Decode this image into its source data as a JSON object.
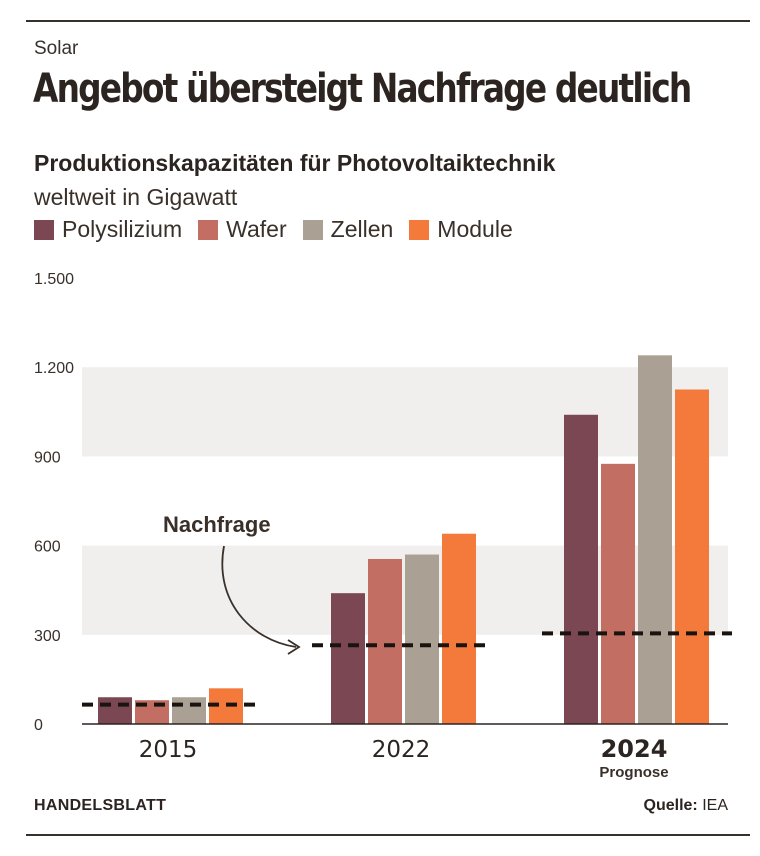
{
  "kicker": "Solar",
  "headline": "Angebot übersteigt Nachfrage deutlich",
  "footer": {
    "brand": "HANDELSBLATT",
    "source_label": "Quelle:",
    "source_value": "IEA"
  },
  "colors": {
    "Polysilizium": "#7b4753",
    "Wafer": "#c36e63",
    "Zellen": "#aaa093",
    "Module": "#f47a3c",
    "band": "#f1efed",
    "demand": "#1a1410"
  },
  "chart_data": {
    "type": "bar",
    "title": "Produktionskapazitäten für Photovoltaiktechnik",
    "unit": "weltweit in Gigawatt",
    "categories": [
      "2015",
      "2022",
      "2024"
    ],
    "category_notes": [
      "",
      "",
      "Prognose"
    ],
    "series": [
      {
        "name": "Polysilizium",
        "values": [
          90,
          440,
          1040
        ]
      },
      {
        "name": "Wafer",
        "values": [
          80,
          555,
          875
        ]
      },
      {
        "name": "Zellen",
        "values": [
          90,
          570,
          1240
        ]
      },
      {
        "name": "Module",
        "values": [
          120,
          640,
          1125
        ]
      }
    ],
    "demand": {
      "label": "Nachfrage",
      "values": [
        65,
        265,
        305
      ]
    },
    "ylim": [
      0,
      1500
    ],
    "yticks": [
      0,
      300,
      600,
      900,
      1200,
      1500
    ],
    "ytick_labels": [
      "0",
      "300",
      "600",
      "900",
      "1.200",
      "1.500"
    ],
    "legend": "top-left",
    "grid": "alternating-bands"
  }
}
